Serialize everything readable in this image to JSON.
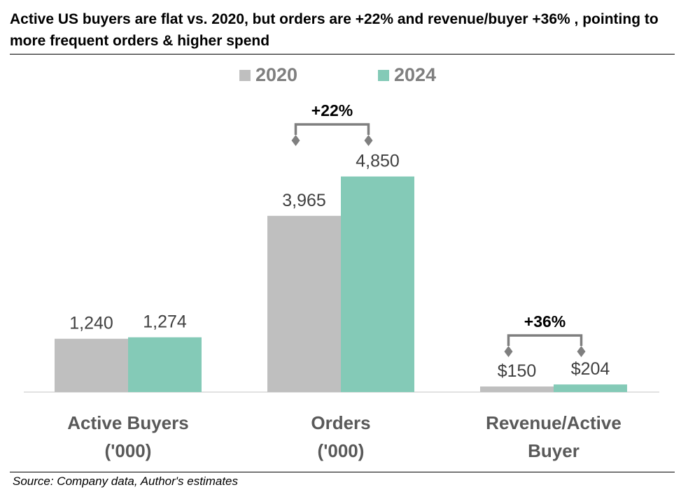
{
  "title": "Active US buyers are flat vs. 2020, but orders are +22%  and revenue/buyer +36% , pointing to more frequent orders & higher spend",
  "source": "Source: Company data, Author's estimates",
  "chart_data": {
    "type": "bar",
    "categories": [
      [
        "Active Buyers",
        "('000)"
      ],
      [
        "Orders",
        "('000)"
      ],
      [
        "Revenue/Active",
        "Buyer"
      ]
    ],
    "series": [
      {
        "name": "2020",
        "color": "#bfbfbf",
        "values": [
          1240,
          3965,
          150
        ],
        "labels": [
          "1,240",
          "3,965",
          "$150"
        ]
      },
      {
        "name": "2024",
        "color": "#84cab7",
        "values": [
          1274,
          4850,
          204
        ],
        "labels": [
          "1,274",
          "4,850",
          "$204"
        ]
      }
    ],
    "annotations": [
      {
        "category_index": 1,
        "text": "+22%"
      },
      {
        "category_index": 2,
        "text": "+36%"
      }
    ],
    "legend_position": "top-center",
    "grid": false
  }
}
